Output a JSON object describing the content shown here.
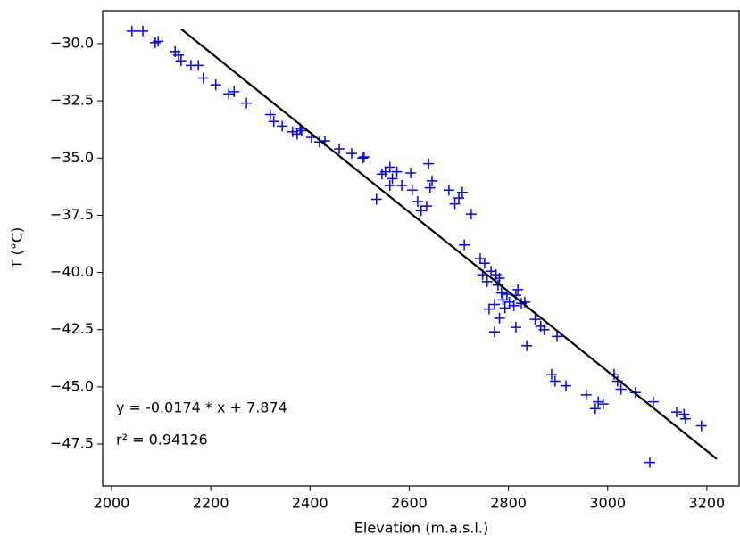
{
  "chart_data": {
    "type": "scatter",
    "xlabel": "Elevation (m.a.s.l.)",
    "ylabel": "T (°C)",
    "annotations": [
      "y = -0.0174 * x + 7.874",
      "r² = 0.94126"
    ],
    "xlim": [
      1982,
      3265
    ],
    "ylim": [
      -49.33,
      -28.56
    ],
    "xticks": [
      2000,
      2200,
      2400,
      2600,
      2800,
      3000,
      3200
    ],
    "yticks": [
      {
        "value": -30,
        "label": "−30.0"
      },
      {
        "value": -32.5,
        "label": "−32.5"
      },
      {
        "value": -35,
        "label": "−35.0"
      },
      {
        "value": -37.5,
        "label": "−37.5"
      },
      {
        "value": -40,
        "label": "−40.0"
      },
      {
        "value": -42.5,
        "label": "−42.5"
      },
      {
        "value": -45,
        "label": "−45.0"
      },
      {
        "value": -47.5,
        "label": "−47.5"
      }
    ],
    "series": [
      {
        "color": "#0000ff",
        "marker": "plus",
        "x": [
          2041,
          2063,
          2088,
          2094,
          2128,
          2135,
          2140,
          2160,
          2175,
          2185,
          2210,
          2236,
          2247,
          2272,
          2320,
          2327,
          2344,
          2365,
          2374,
          2380,
          2383,
          2403,
          2419,
          2430,
          2459,
          2484,
          2506,
          2509,
          2534,
          2545,
          2552,
          2561,
          2561,
          2566,
          2575,
          2585,
          2603,
          2606,
          2617,
          2624,
          2635,
          2639,
          2642,
          2646,
          2680,
          2692,
          2700,
          2707,
          2711,
          2725,
          2743,
          2748,
          2752,
          2757,
          2761,
          2765,
          2772,
          2772,
          2775,
          2779,
          2782,
          2782,
          2786,
          2789,
          2793,
          2797,
          2802,
          2811,
          2815,
          2815,
          2819,
          2826,
          2833,
          2837,
          2854,
          2865,
          2872,
          2887,
          2894,
          2898,
          2916,
          2957,
          2975,
          2981,
          2991,
          3013,
          3020,
          3027,
          3056,
          3092,
          3085,
          3139,
          3154,
          3157,
          3189
        ],
        "values": [
          -29.45,
          -29.45,
          -29.96,
          -29.9,
          -30.35,
          -30.5,
          -30.75,
          -30.95,
          -30.95,
          -31.5,
          -31.8,
          -32.2,
          -32.1,
          -32.6,
          -33.1,
          -33.4,
          -33.6,
          -33.85,
          -33.95,
          -33.7,
          -33.8,
          -34.1,
          -34.3,
          -34.25,
          -34.6,
          -34.8,
          -35.0,
          -34.95,
          -36.8,
          -35.7,
          -35.6,
          -35.4,
          -36.2,
          -35.9,
          -35.6,
          -36.2,
          -35.65,
          -36.4,
          -36.9,
          -37.3,
          -37.1,
          -35.25,
          -36.3,
          -36.0,
          -36.4,
          -37.0,
          -36.75,
          -36.5,
          -38.8,
          -37.45,
          -39.4,
          -40.1,
          -39.6,
          -40.4,
          -41.6,
          -39.95,
          -41.4,
          -42.6,
          -40.1,
          -40.55,
          -40.25,
          -42.0,
          -40.9,
          -41.2,
          -41.55,
          -40.95,
          -41.3,
          -41.45,
          -41.0,
          -42.4,
          -40.75,
          -41.35,
          -41.3,
          -43.2,
          -42.05,
          -42.35,
          -42.5,
          -44.45,
          -44.75,
          -42.8,
          -44.95,
          -45.35,
          -45.95,
          -45.65,
          -45.75,
          -44.45,
          -44.75,
          -45.1,
          -45.25,
          -45.65,
          -48.3,
          -46.1,
          -46.2,
          -46.4,
          -46.7
        ]
      },
      {
        "color": "#000000",
        "marker": "line",
        "x": [
          2140,
          3220
        ],
        "values": [
          -29.36,
          -48.15
        ]
      }
    ]
  }
}
